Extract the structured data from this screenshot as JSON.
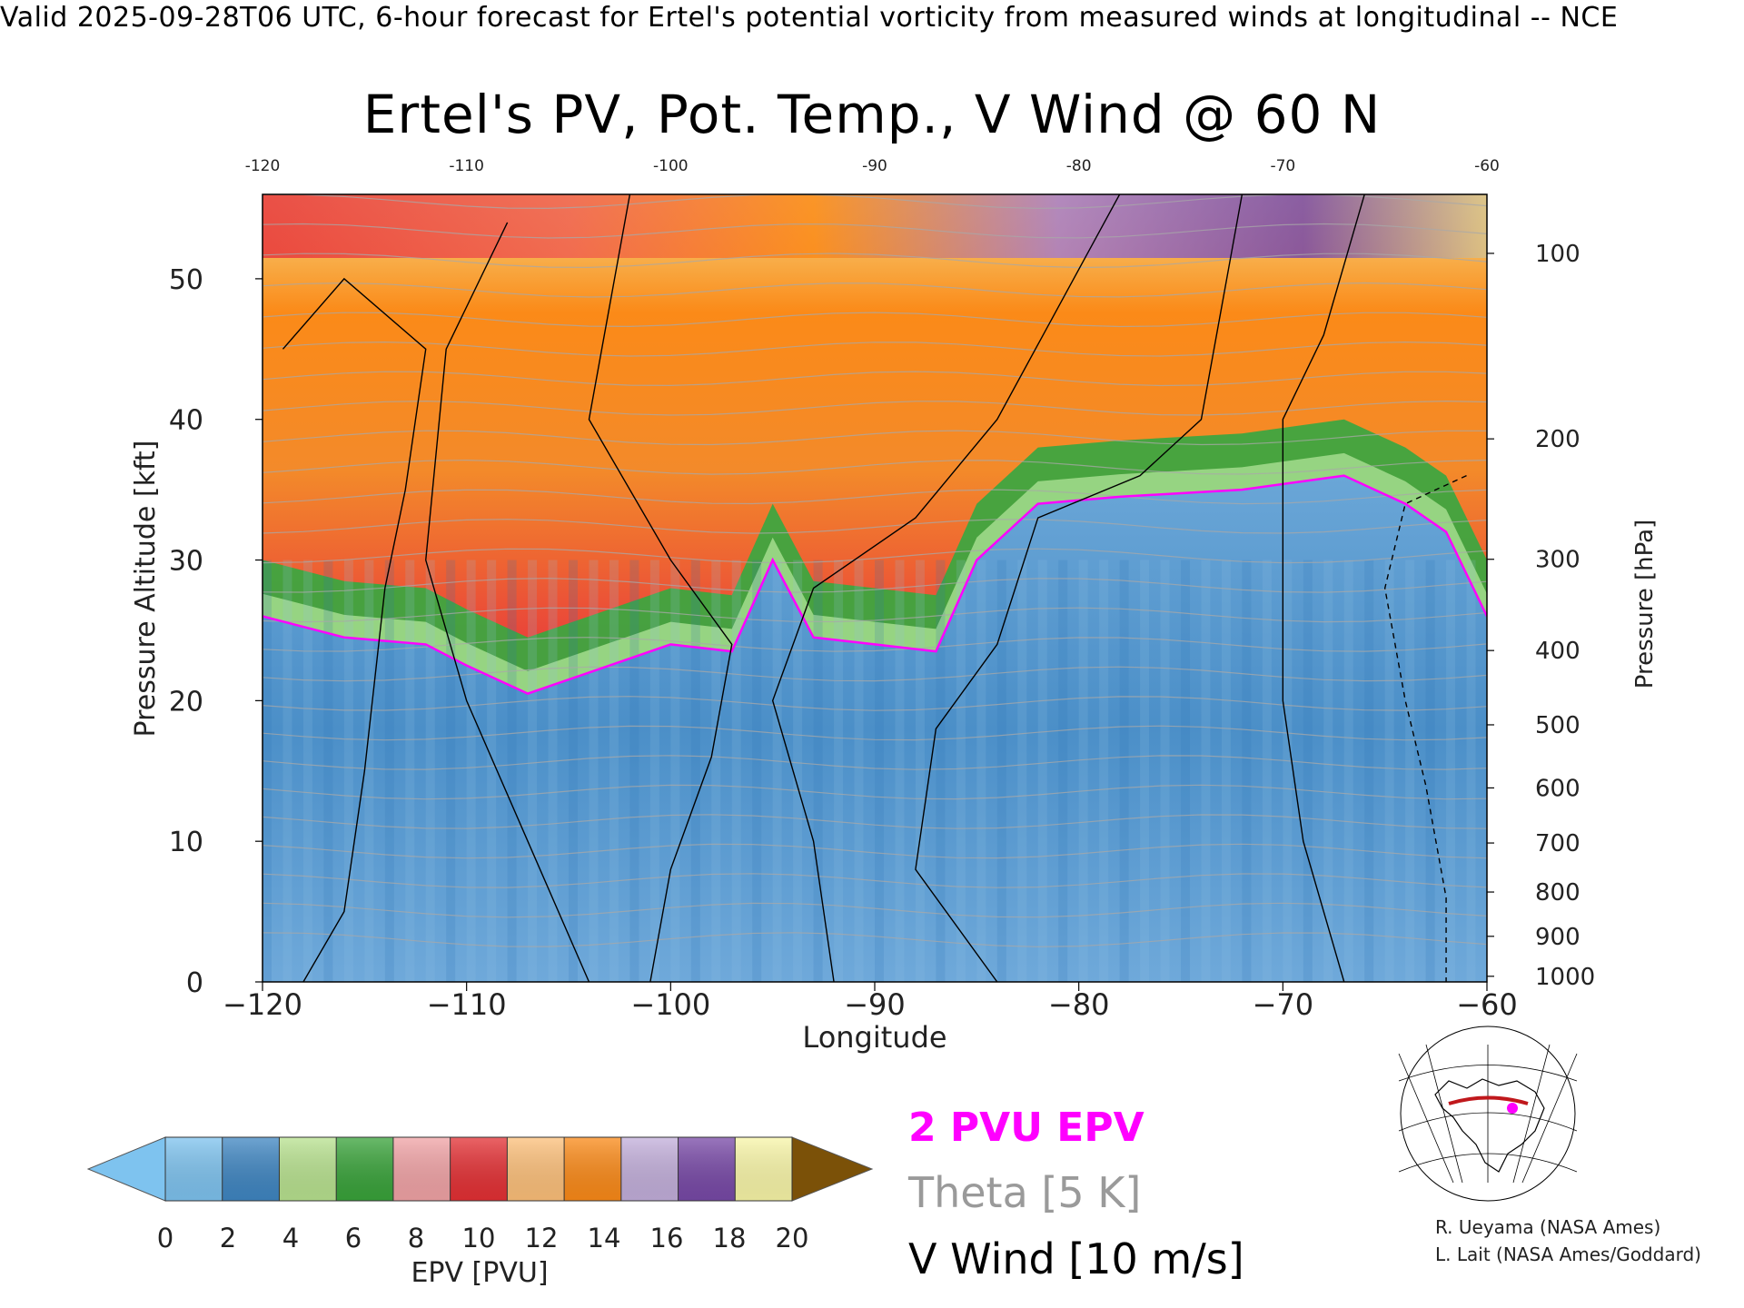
{
  "header": "Valid 2025-09-28T06 UTC, 6-hour forecast for Ertel's potential vorticity from measured winds at longitudinal -- NCE",
  "chart_data": {
    "type": "heatmap",
    "title": "Ertel's PV, Pot. Temp., V Wind @ 60 N",
    "xlabel": "Longitude",
    "ylabel": "Pressure Altitude [kft]",
    "y2label": "Pressure [hPa]",
    "xlim": [
      -120,
      -60
    ],
    "ylim": [
      0,
      56
    ],
    "x_ticks": [
      -120,
      -110,
      -100,
      -90,
      -80,
      -70,
      -60
    ],
    "x_ticks_top": [
      -120,
      -110,
      -100,
      -90,
      -80,
      -70,
      -60
    ],
    "y_ticks": [
      0,
      10,
      20,
      30,
      40,
      50
    ],
    "pressure_ticks": [
      100,
      200,
      300,
      400,
      500,
      600,
      700,
      800,
      900,
      1000
    ],
    "tropopause_2pvu_kft": [
      {
        "lon": -120,
        "alt": 26
      },
      {
        "lon": -116,
        "alt": 24.5
      },
      {
        "lon": -112,
        "alt": 24
      },
      {
        "lon": -110,
        "alt": 22.5
      },
      {
        "lon": -107,
        "alt": 20.5
      },
      {
        "lon": -104,
        "alt": 22
      },
      {
        "lon": -100,
        "alt": 24
      },
      {
        "lon": -97,
        "alt": 23.5
      },
      {
        "lon": -95,
        "alt": 30
      },
      {
        "lon": -93,
        "alt": 24.5
      },
      {
        "lon": -90,
        "alt": 24
      },
      {
        "lon": -87,
        "alt": 23.5
      },
      {
        "lon": -85,
        "alt": 30
      },
      {
        "lon": -82,
        "alt": 34
      },
      {
        "lon": -78,
        "alt": 34.5
      },
      {
        "lon": -72,
        "alt": 35
      },
      {
        "lon": -67,
        "alt": 36
      },
      {
        "lon": -64,
        "alt": 34
      },
      {
        "lon": -62,
        "alt": 32
      },
      {
        "lon": -60,
        "alt": 26
      }
    ],
    "colorbar": {
      "label": "EPV [PVU]",
      "ticks": [
        0,
        2,
        4,
        6,
        8,
        10,
        12,
        14,
        16,
        18,
        20
      ],
      "colors": [
        "#7ec3ef",
        "#3f86c2",
        "#b8e28f",
        "#39a33a",
        "#f1a3a6",
        "#e43034",
        "#fdc07a",
        "#fb8a18",
        "#c3afdb",
        "#7849a7",
        "#f9f6a8",
        "#7b5108"
      ],
      "under_color": "#7ec3ef",
      "over_color": "#7b5108"
    },
    "legend": [
      {
        "label": "2 PVU EPV",
        "color": "#ff00ff"
      },
      {
        "label": "Theta [5 K]",
        "color": "#9a9a9a"
      },
      {
        "label": "V Wind [10 m/s]",
        "color": "#000000"
      }
    ]
  },
  "credits": [
    "R. Ueyama (NASA Ames)",
    "L. Lait (NASA Ames/Goddard)"
  ]
}
